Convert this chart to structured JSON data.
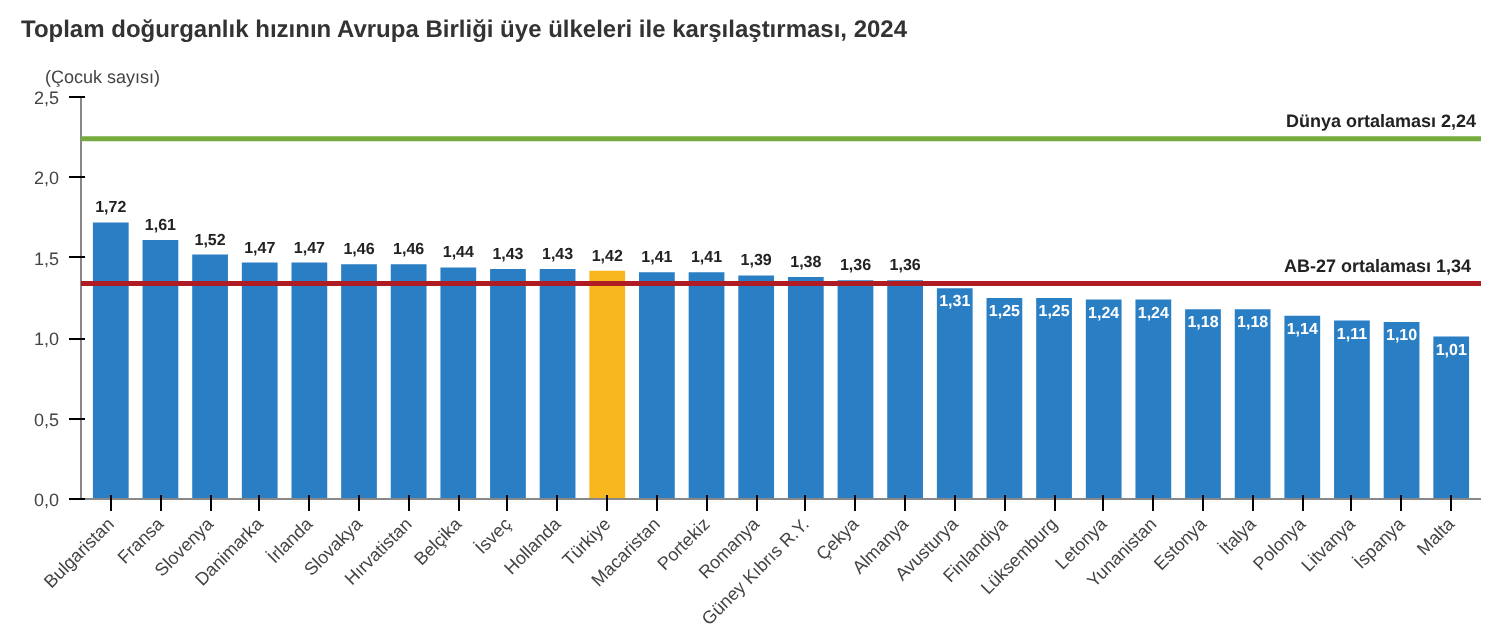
{
  "chart_data": {
    "type": "bar",
    "title": "Toplam doğurganlık hızının Avrupa Birliği üye ülkeleri ile karşılaştırması, 2024",
    "ylabel": "(Çocuk sayısı)",
    "categories": [
      "Bulgaristan",
      "Fransa",
      "Slovenya",
      "Danimarka",
      "İrlanda",
      "Slovakya",
      "Hırvatistan",
      "Belçika",
      "İsveç",
      "Hollanda",
      "Türkiye",
      "Macaristan",
      "Portekiz",
      "Romanya",
      "Güney Kıbrıs R.Y.",
      "Çekya",
      "Almanya",
      "Avusturya",
      "Finlandiya",
      "Lüksemburg",
      "Letonya",
      "Yunanistan",
      "Estonya",
      "İtalya",
      "Polonya",
      "Litvanya",
      "İspanya",
      "Malta"
    ],
    "values": [
      1.72,
      1.61,
      1.52,
      1.47,
      1.47,
      1.46,
      1.46,
      1.44,
      1.43,
      1.43,
      1.42,
      1.41,
      1.41,
      1.39,
      1.38,
      1.36,
      1.36,
      1.31,
      1.25,
      1.25,
      1.24,
      1.24,
      1.18,
      1.18,
      1.14,
      1.11,
      1.1,
      1.01
    ],
    "value_labels": [
      "1,72",
      "1,61",
      "1,52",
      "1,47",
      "1,47",
      "1,46",
      "1,46",
      "1,44",
      "1,43",
      "1,43",
      "1,42",
      "1,41",
      "1,41",
      "1,39",
      "1,38",
      "1,36",
      "1,36",
      "1,31",
      "1,25",
      "1,25",
      "1,24",
      "1,24",
      "1,18",
      "1,18",
      "1,14",
      "1,11",
      "1,10",
      "1,01"
    ],
    "colors": [
      "#2a7fc4",
      "#2a7fc4",
      "#2a7fc4",
      "#2a7fc4",
      "#2a7fc4",
      "#2a7fc4",
      "#2a7fc4",
      "#2a7fc4",
      "#2a7fc4",
      "#2a7fc4",
      "#f7b71d",
      "#2a7fc4",
      "#2a7fc4",
      "#2a7fc4",
      "#2a7fc4",
      "#2a7fc4",
      "#2a7fc4",
      "#2a7fc4",
      "#2a7fc4",
      "#2a7fc4",
      "#2a7fc4",
      "#2a7fc4",
      "#2a7fc4",
      "#2a7fc4",
      "#2a7fc4",
      "#2a7fc4",
      "#2a7fc4",
      "#2a7fc4"
    ],
    "ylim": [
      0,
      2.5
    ],
    "yticks": [
      {
        "value": 0,
        "label": "0,0"
      },
      {
        "value": 0.5,
        "label": "0,5"
      },
      {
        "value": 1.0,
        "label": "1,0"
      },
      {
        "value": 1.5,
        "label": "1,5"
      },
      {
        "value": 2.0,
        "label": "2,0"
      },
      {
        "value": 2.5,
        "label": "2,5"
      }
    ],
    "ref_lines": [
      {
        "axis": "y",
        "value": 2.24,
        "label": "Dünya ortalaması 2,24",
        "color": "#77ab3f"
      },
      {
        "axis": "y",
        "value": 1.34,
        "label": "AB-27 ortalaması  1,34",
        "color": "#b01c24"
      }
    ]
  }
}
